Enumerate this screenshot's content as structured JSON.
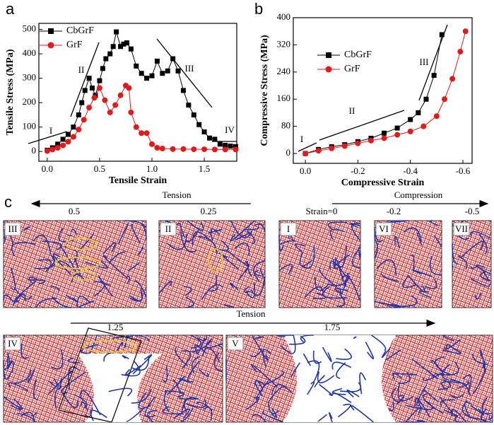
{
  "chart_data": [
    {
      "type": "line",
      "panel": "a",
      "xlabel": "Tensile Strain",
      "ylabel": "Tensile Stress (MPa)",
      "xlim": [
        -0.08,
        1.81
      ],
      "ylim": [
        -40,
        525
      ],
      "xticks": [
        {
          "value": 0,
          "label": "0.0"
        },
        {
          "value": 0.5,
          "label": "0.5"
        },
        {
          "value": 1,
          "label": "1.0"
        },
        {
          "value": 1.5,
          "label": "1.5"
        }
      ],
      "yticks": [
        0,
        100,
        200,
        300,
        400,
        500
      ],
      "legend": "upper left",
      "annotations": [
        "I",
        "II",
        "III",
        "IV"
      ],
      "series": [
        {
          "name": "CbGrF",
          "color": "#000000",
          "marker": "square",
          "x": [
            0,
            0.05,
            0.1,
            0.15,
            0.2,
            0.25,
            0.3,
            0.33,
            0.36,
            0.4,
            0.43,
            0.46,
            0.5,
            0.53,
            0.56,
            0.6,
            0.63,
            0.66,
            0.7,
            0.73,
            0.76,
            0.8,
            0.85,
            0.9,
            0.95,
            1.0,
            1.05,
            1.1,
            1.15,
            1.2,
            1.25,
            1.3,
            1.35,
            1.4,
            1.45,
            1.5,
            1.55,
            1.6,
            1.65,
            1.7,
            1.75,
            1.8
          ],
          "values": [
            5,
            15,
            30,
            50,
            70,
            100,
            150,
            200,
            250,
            300,
            260,
            230,
            290,
            340,
            380,
            400,
            430,
            490,
            430,
            440,
            445,
            420,
            350,
            320,
            300,
            310,
            370,
            320,
            330,
            380,
            330,
            250,
            190,
            150,
            110,
            80,
            55,
            50,
            30,
            25,
            22,
            20
          ]
        },
        {
          "name": "GrF",
          "color": "#e31a1c",
          "marker": "circle",
          "x": [
            0,
            0.05,
            0.1,
            0.15,
            0.2,
            0.25,
            0.3,
            0.35,
            0.4,
            0.45,
            0.5,
            0.55,
            0.6,
            0.65,
            0.7,
            0.75,
            0.78,
            0.8,
            0.85,
            0.9,
            0.95,
            1.0,
            1.05,
            1.1,
            1.2,
            1.3,
            1.4,
            1.5,
            1.6,
            1.7,
            1.8
          ],
          "values": [
            2,
            8,
            15,
            25,
            40,
            60,
            90,
            130,
            180,
            220,
            260,
            210,
            160,
            190,
            230,
            270,
            260,
            160,
            100,
            75,
            75,
            30,
            15,
            12,
            10,
            10,
            9,
            9,
            8,
            8,
            8
          ]
        }
      ]
    },
    {
      "type": "line",
      "panel": "b",
      "xlabel": "Compressive Strain",
      "ylabel": "Compressive Stress (MPa)",
      "xlim": [
        0.046,
        -0.635
      ],
      "ylim": [
        -29,
        400
      ],
      "xticks": [
        {
          "value": 0,
          "label": "0.0"
        },
        -0.2,
        -0.4,
        -0.6
      ],
      "yticks": [
        0,
        80,
        160,
        240,
        320,
        400
      ],
      "legend": "center left",
      "annotations": [
        "I",
        "II",
        "III"
      ],
      "series": [
        {
          "name": "CbGrF",
          "color": "#000000",
          "marker": "square",
          "x": [
            0,
            -0.05,
            -0.1,
            -0.15,
            -0.2,
            -0.25,
            -0.3,
            -0.35,
            -0.4,
            -0.43,
            -0.46,
            -0.49,
            -0.52
          ],
          "values": [
            0,
            12,
            20,
            26,
            35,
            45,
            60,
            75,
            100,
            120,
            160,
            230,
            350
          ]
        },
        {
          "name": "GrF",
          "color": "#e31a1c",
          "marker": "circle",
          "x": [
            0,
            -0.05,
            -0.1,
            -0.15,
            -0.2,
            -0.25,
            -0.3,
            -0.35,
            -0.4,
            -0.45,
            -0.5,
            -0.53,
            -0.56,
            -0.59,
            -0.61
          ],
          "values": [
            0,
            8,
            15,
            22,
            30,
            38,
            45,
            55,
            65,
            80,
            110,
            160,
            220,
            300,
            360
          ]
        }
      ]
    }
  ],
  "panel_c": {
    "label": "c",
    "top_left_arrow": "Tension",
    "top_right_arrow": "Compression",
    "top_strains": [
      "0.5",
      "0.25",
      "Strain=0",
      "-0.2",
      "-0.5"
    ],
    "top_stages": [
      "III",
      "II",
      "I",
      "VI",
      "VII"
    ],
    "bottom_arrow": "Tension",
    "bottom_strains": [
      "1.25",
      "1.75"
    ],
    "bottom_stages": [
      "IV",
      "V"
    ]
  }
}
